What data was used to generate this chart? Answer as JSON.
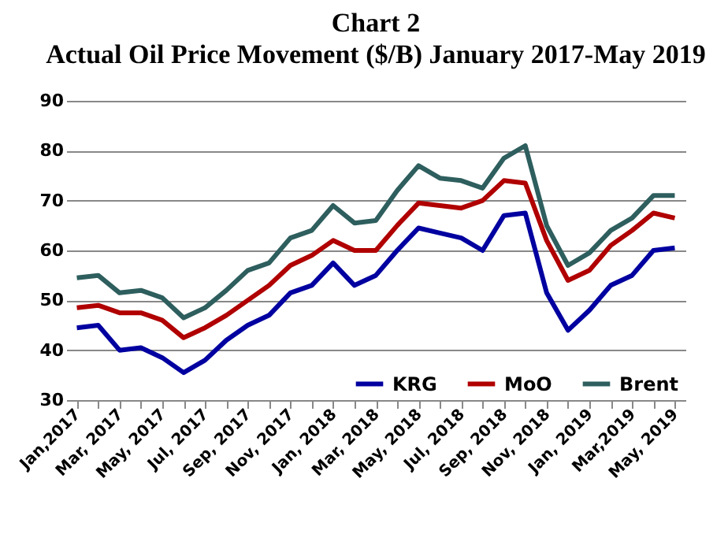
{
  "chart_data": {
    "type": "line",
    "title": "Chart 2",
    "subtitle": "Actual Oil Price Movement ($/B) January 2017-May 2019",
    "categories": [
      "Jan,2017",
      null,
      "Mar, 2017",
      null,
      "May, 2017",
      null,
      "Jul, 2017",
      null,
      "Sep, 2017",
      null,
      "Nov, 2017",
      null,
      "Jan, 2018",
      null,
      "Mar, 2018",
      null,
      "May, 2018",
      null,
      "Jul, 2018",
      null,
      "Sep, 2018",
      null,
      "Nov, 2018",
      null,
      "Jan, 2019",
      null,
      "Mar,2019",
      null,
      "May, 2019"
    ],
    "series": [
      {
        "name": "KRG",
        "color": "#0000a0",
        "values": [
          44.5,
          45,
          40,
          40.5,
          38.5,
          35.5,
          38,
          42,
          45,
          47,
          51.5,
          53,
          57.5,
          53,
          55,
          60,
          64.5,
          63.5,
          62.5,
          60,
          67,
          67.5,
          51.5,
          44,
          48,
          53,
          55,
          60,
          60.5
        ]
      },
      {
        "name": "MoO",
        "color": "#b00000",
        "values": [
          48.5,
          49,
          47.5,
          47.5,
          46,
          42.5,
          44.5,
          47,
          50,
          53,
          57,
          59,
          62,
          60,
          60,
          65,
          69.5,
          69,
          68.5,
          70,
          74,
          73.5,
          62,
          54,
          56,
          61,
          64,
          67.5,
          66.5
        ]
      },
      {
        "name": "Brent",
        "color": "#2e5e5e",
        "values": [
          54.5,
          55,
          51.5,
          52,
          50.5,
          46.5,
          48.5,
          52,
          56,
          57.5,
          62.5,
          64,
          69,
          65.5,
          66,
          72,
          77,
          74.5,
          74,
          72.5,
          78.5,
          81,
          65,
          57,
          59.5,
          64,
          66.5,
          71,
          71
        ]
      }
    ],
    "ylim": [
      30,
      90
    ],
    "yticks": [
      30,
      40,
      50,
      60,
      70,
      80,
      90
    ],
    "grid": "y",
    "legend": "bottom right",
    "marker": "none",
    "line_style": "solid"
  }
}
